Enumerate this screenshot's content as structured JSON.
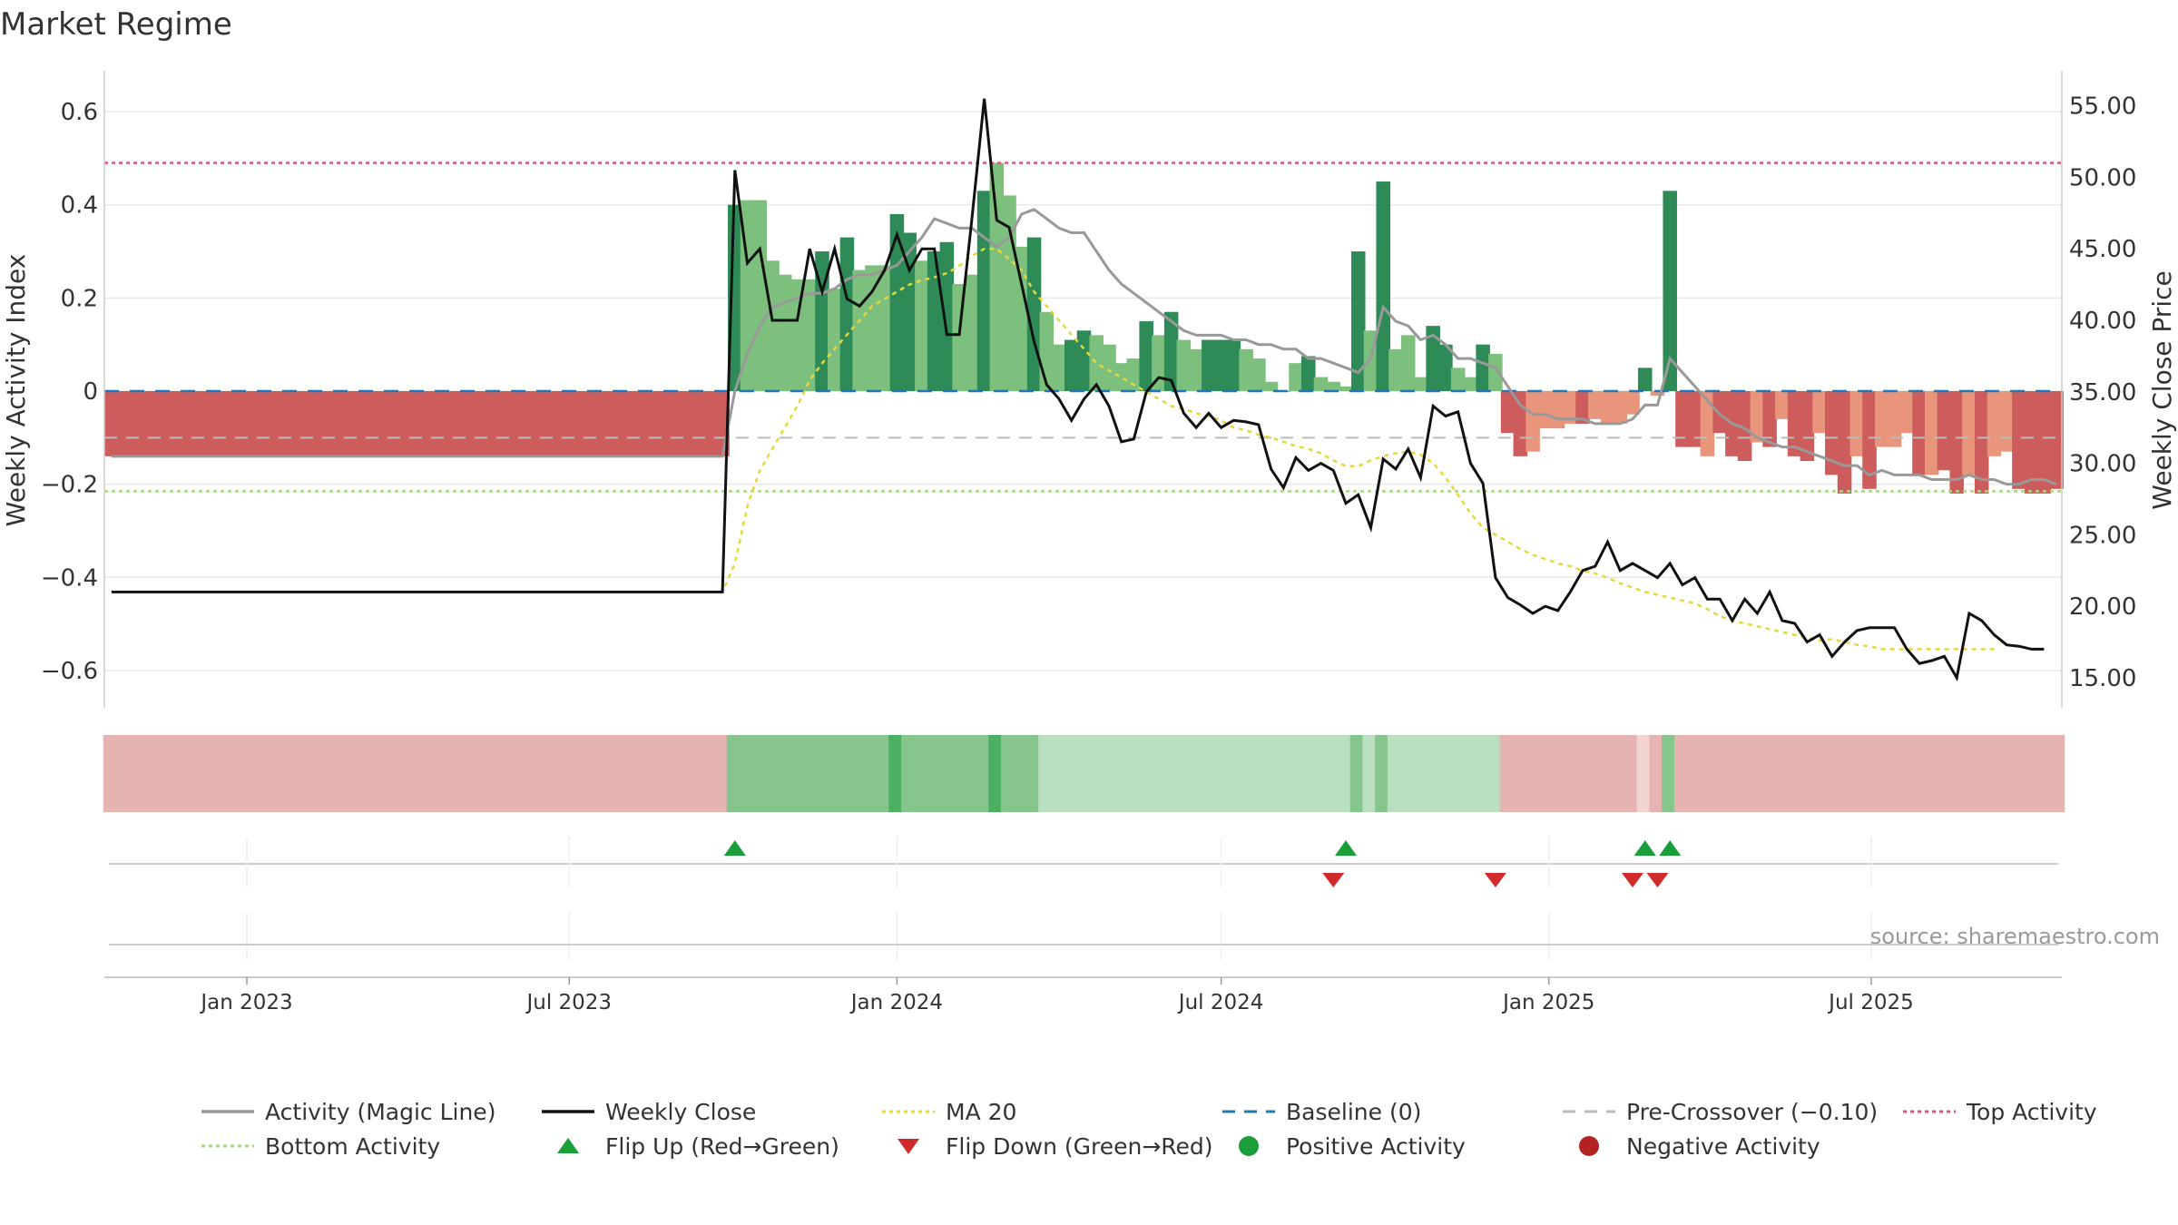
{
  "colors": {
    "axis_text": "#333333",
    "grid": "#e9e9e9",
    "strong_green": "#2e8b57",
    "light_green": "#7dbf7d",
    "strong_red": "#cd5c5c",
    "light_red": "#e8957b",
    "magic_line": "#999999",
    "weekly_close": "#111111",
    "ma20": "#e6d83a",
    "baseline": "#1f77b4",
    "pre_crossover": "#bbbbbb",
    "top_activity": "#d9577a",
    "bottom_activity": "#a8d878",
    "flip_up": "#1a9e3a",
    "flip_down": "#d12a2a",
    "positive_activity": "#1a9e3a",
    "negative_activity": "#b22222",
    "source_text": "#999999"
  },
  "chart_data": {
    "type": "bar",
    "title": "Market Regime",
    "source": "source: sharemaestro.com",
    "ylabel_left": "Weekly Activity Index",
    "ylabel_right": "Weekly Close Price",
    "yticks_left": [
      "0.6",
      "0.4",
      "0.2",
      "0",
      "−0.2",
      "−0.4",
      "−0.6"
    ],
    "yticks_left_values": [
      0.6,
      0.4,
      0.2,
      0,
      -0.2,
      -0.4,
      -0.6
    ],
    "yticks_right": [
      "55.00",
      "50.00",
      "45.00",
      "40.00",
      "35.00",
      "30.00",
      "25.00",
      "20.00",
      "15.00"
    ],
    "yticks_right_values": [
      55,
      50,
      45,
      40,
      35,
      30,
      25,
      20,
      15
    ],
    "ylim_left": [
      -0.68,
      0.68
    ],
    "ylim_right": [
      12.9,
      57.2
    ],
    "xticks": [
      "Jan 2023",
      "Jul 2023",
      "Jan 2024",
      "Jul 2024",
      "Jan 2025",
      "Jul 2025"
    ],
    "xticks_dates": [
      "2023-01-01",
      "2023-07-01",
      "2024-01-01",
      "2024-07-01",
      "2025-01-01",
      "2025-07-01"
    ],
    "x_range": [
      "2022-10-13",
      "2025-10-16"
    ],
    "weeks_start": "2022-10-17",
    "week_count": 157,
    "reference_lines": {
      "baseline": 0,
      "pre_crossover": -0.1,
      "top_activity": 0.49,
      "bottom_activity": -0.215
    },
    "activity_index": [
      -0.14,
      -0.14,
      -0.14,
      -0.14,
      -0.14,
      -0.14,
      -0.14,
      -0.14,
      -0.14,
      -0.14,
      -0.14,
      -0.14,
      -0.14,
      -0.14,
      -0.14,
      -0.14,
      -0.14,
      -0.14,
      -0.14,
      -0.14,
      -0.14,
      -0.14,
      -0.14,
      -0.14,
      -0.14,
      -0.14,
      -0.14,
      -0.14,
      -0.14,
      -0.14,
      -0.14,
      -0.14,
      -0.14,
      -0.14,
      -0.14,
      -0.14,
      -0.14,
      -0.14,
      -0.14,
      -0.14,
      -0.14,
      -0.14,
      -0.14,
      -0.14,
      -0.14,
      -0.14,
      -0.14,
      -0.14,
      -0.14,
      -0.14,
      0.4,
      0.41,
      0.41,
      0.28,
      0.25,
      0.24,
      0.24,
      0.3,
      0.22,
      0.33,
      0.26,
      0.27,
      0.27,
      0.38,
      0.34,
      0.28,
      0.3,
      0.32,
      0.23,
      0.25,
      0.43,
      0.49,
      0.42,
      0.31,
      0.33,
      0.17,
      0.1,
      0.11,
      0.13,
      0.12,
      0.1,
      0.06,
      0.07,
      0.15,
      0.12,
      0.17,
      0.11,
      0.09,
      0.11,
      0.11,
      0.11,
      0.09,
      0.07,
      0.02,
      0.0,
      0.06,
      0.075,
      0.03,
      0.02,
      0.01,
      0.3,
      0.13,
      0.45,
      0.09,
      0.12,
      0.03,
      0.14,
      0.1,
      0.05,
      0.03,
      0.1,
      0.08,
      -0.09,
      -0.14,
      -0.13,
      -0.08,
      -0.08,
      -0.07,
      -0.07,
      -0.06,
      -0.07,
      -0.07,
      -0.05,
      0.05,
      -0.01,
      0.43,
      -0.12,
      -0.12,
      -0.14,
      -0.09,
      -0.14,
      -0.15,
      -0.11,
      -0.12,
      -0.06,
      -0.14,
      -0.15,
      -0.09,
      -0.18,
      -0.22,
      -0.14,
      -0.21,
      -0.12,
      -0.12,
      -0.09,
      -0.18,
      -0.18,
      -0.17,
      -0.22,
      -0.18,
      -0.22,
      -0.14,
      -0.13,
      -0.21,
      -0.22,
      -0.22,
      -0.21
    ],
    "activity_strong": [
      1,
      1,
      1,
      1,
      1,
      1,
      1,
      1,
      1,
      1,
      1,
      1,
      1,
      1,
      1,
      1,
      1,
      1,
      1,
      1,
      1,
      1,
      1,
      1,
      1,
      1,
      1,
      1,
      1,
      1,
      1,
      1,
      1,
      1,
      1,
      1,
      1,
      1,
      1,
      1,
      1,
      1,
      1,
      1,
      1,
      1,
      1,
      1,
      1,
      1,
      1,
      0,
      0,
      0,
      0,
      0,
      0,
      1,
      0,
      1,
      0,
      0,
      0,
      1,
      1,
      0,
      1,
      1,
      0,
      0,
      1,
      0,
      0,
      0,
      1,
      0,
      0,
      1,
      1,
      0,
      0,
      0,
      0,
      1,
      0,
      1,
      0,
      0,
      1,
      1,
      1,
      0,
      0,
      0,
      0,
      0,
      1,
      0,
      0,
      0,
      1,
      0,
      1,
      0,
      0,
      0,
      1,
      1,
      0,
      0,
      1,
      0,
      1,
      1,
      0,
      0,
      0,
      0,
      1,
      0,
      0,
      0,
      0,
      1,
      0,
      1,
      1,
      1,
      0,
      1,
      1,
      1,
      0,
      1,
      0,
      1,
      1,
      0,
      1,
      1,
      0,
      1,
      0,
      0,
      0,
      1,
      0,
      1,
      1,
      0,
      1,
      0,
      0,
      1,
      1,
      1,
      1
    ],
    "magic_line": [
      -0.14,
      -0.14,
      -0.14,
      -0.14,
      -0.14,
      -0.14,
      -0.14,
      -0.14,
      -0.14,
      -0.14,
      -0.14,
      -0.14,
      -0.14,
      -0.14,
      -0.14,
      -0.14,
      -0.14,
      -0.14,
      -0.14,
      -0.14,
      -0.14,
      -0.14,
      -0.14,
      -0.14,
      -0.14,
      -0.14,
      -0.14,
      -0.14,
      -0.14,
      -0.14,
      -0.14,
      -0.14,
      -0.14,
      -0.14,
      -0.14,
      -0.14,
      -0.14,
      -0.14,
      -0.14,
      -0.14,
      -0.14,
      -0.14,
      -0.14,
      -0.14,
      -0.14,
      -0.14,
      -0.14,
      -0.14,
      -0.14,
      -0.14,
      0.0,
      0.08,
      0.14,
      0.18,
      0.19,
      0.2,
      0.21,
      0.21,
      0.22,
      0.24,
      0.25,
      0.25,
      0.26,
      0.27,
      0.3,
      0.33,
      0.37,
      0.36,
      0.35,
      0.35,
      0.33,
      0.31,
      0.33,
      0.38,
      0.39,
      0.37,
      0.35,
      0.34,
      0.34,
      0.3,
      0.26,
      0.23,
      0.21,
      0.19,
      0.17,
      0.15,
      0.13,
      0.12,
      0.12,
      0.12,
      0.11,
      0.11,
      0.1,
      0.1,
      0.09,
      0.09,
      0.07,
      0.07,
      0.06,
      0.05,
      0.04,
      0.07,
      0.18,
      0.15,
      0.14,
      0.11,
      0.12,
      0.1,
      0.07,
      0.07,
      0.06,
      0.05,
      0.01,
      -0.03,
      -0.05,
      -0.05,
      -0.06,
      -0.06,
      -0.06,
      -0.07,
      -0.07,
      -0.07,
      -0.06,
      -0.03,
      -0.03,
      0.07,
      0.04,
      0.01,
      -0.02,
      -0.05,
      -0.07,
      -0.08,
      -0.1,
      -0.11,
      -0.12,
      -0.12,
      -0.13,
      -0.14,
      -0.15,
      -0.16,
      -0.16,
      -0.18,
      -0.17,
      -0.18,
      -0.18,
      -0.18,
      -0.19,
      -0.19,
      -0.19,
      -0.18,
      -0.19,
      -0.19,
      -0.2,
      -0.2,
      -0.19,
      -0.19,
      -0.2
    ],
    "weekly_close": [
      21.0,
      21.0,
      21.0,
      21.0,
      21.0,
      21.0,
      21.0,
      21.0,
      21.0,
      21.0,
      21.0,
      21.0,
      21.0,
      21.0,
      21.0,
      21.0,
      21.0,
      21.0,
      21.0,
      21.0,
      21.0,
      21.0,
      21.0,
      21.0,
      21.0,
      21.0,
      21.0,
      21.0,
      21.0,
      21.0,
      21.0,
      21.0,
      21.0,
      21.0,
      21.0,
      21.0,
      21.0,
      21.0,
      21.0,
      21.0,
      21.0,
      21.0,
      21.0,
      21.0,
      21.0,
      21.0,
      21.0,
      21.0,
      21.0,
      21.0,
      50.5,
      44.0,
      45.0,
      40.0,
      40.0,
      40.0,
      45.0,
      42.0,
      45.0,
      41.5,
      41.0,
      42.0,
      43.5,
      46.0,
      43.5,
      45.0,
      45.0,
      39.0,
      39.0,
      47.0,
      55.5,
      47.0,
      46.5,
      42.5,
      38.5,
      35.5,
      34.5,
      33.0,
      34.5,
      35.5,
      34.0,
      31.5,
      31.7,
      35.0,
      36.0,
      35.8,
      33.5,
      32.5,
      33.5,
      32.5,
      33.0,
      32.9,
      32.7,
      29.6,
      28.3,
      30.4,
      29.5,
      30.0,
      29.5,
      27.2,
      27.8,
      25.5,
      30.3,
      29.6,
      31.0,
      29.0,
      34.0,
      33.3,
      33.6,
      30.0,
      28.6,
      22.0,
      20.6,
      20.1,
      19.5,
      20.0,
      19.7,
      21.0,
      22.5,
      22.8,
      24.5,
      22.5,
      23.0,
      22.5,
      22.0,
      23.0,
      21.5,
      22.0,
      20.5,
      20.5,
      19.0,
      20.5,
      19.5,
      21.0,
      19.0,
      18.8,
      17.5,
      18.0,
      16.5,
      17.5,
      18.3,
      18.5,
      18.5,
      18.5,
      17.0,
      16.0,
      16.2,
      16.5,
      15.0,
      19.5,
      19.0,
      18.0,
      17.3,
      17.2,
      17.0,
      17.0
    ],
    "ma20": [
      21.0,
      21.0,
      21.0,
      21.0,
      21.0,
      21.0,
      21.0,
      21.0,
      21.0,
      21.0,
      21.0,
      21.0,
      21.0,
      21.0,
      21.0,
      21.0,
      21.0,
      21.0,
      21.0,
      21.0,
      21.0,
      21.0,
      21.0,
      21.0,
      21.0,
      21.0,
      21.0,
      21.0,
      21.0,
      21.0,
      21.0,
      21.0,
      21.0,
      21.0,
      21.0,
      21.0,
      21.0,
      21.0,
      21.0,
      21.0,
      21.0,
      21.0,
      21.0,
      21.0,
      21.0,
      21.0,
      21.0,
      21.0,
      21.0,
      21.0,
      23.0,
      27.0,
      29.5,
      31.0,
      32.5,
      34.0,
      35.8,
      37.0,
      38.0,
      39.0,
      40.0,
      41.0,
      41.5,
      42.0,
      42.5,
      42.8,
      43.0,
      43.3,
      43.8,
      44.5,
      45.0,
      45.0,
      44.3,
      43.5,
      42.0,
      41.0,
      40.0,
      39.0,
      38.0,
      37.0,
      36.5,
      36.0,
      35.5,
      35.0,
      34.5,
      34.0,
      33.8,
      33.5,
      33.3,
      33.0,
      32.5,
      32.3,
      32.0,
      31.8,
      31.5,
      31.2,
      31.0,
      30.7,
      30.2,
      29.8,
      29.8,
      30.2,
      30.5,
      30.7,
      30.8,
      30.6,
      30.0,
      29.0,
      27.8,
      26.5,
      25.5,
      25.0,
      24.5,
      24.0,
      23.6,
      23.3,
      23.0,
      22.8,
      22.5,
      22.3,
      22.0,
      21.6,
      21.3,
      21.0,
      20.8,
      20.6,
      20.4,
      20.2,
      19.8,
      19.3,
      19.0,
      18.8,
      18.6,
      18.4,
      18.2,
      18.0,
      17.8,
      17.6,
      17.7,
      17.5,
      17.3,
      17.2,
      17.0,
      17.0,
      17.0,
      17.0,
      17.0,
      17.0,
      17.0,
      17.0,
      17.0,
      17.0
    ],
    "regime_strip_levels": [
      1,
      1,
      1,
      1,
      1,
      1,
      1,
      1,
      1,
      1,
      1,
      1,
      1,
      1,
      1,
      1,
      1,
      1,
      1,
      1,
      1,
      1,
      1,
      1,
      1,
      1,
      1,
      1,
      1,
      1,
      1,
      1,
      1,
      1,
      1,
      1,
      1,
      1,
      1,
      1,
      1,
      1,
      1,
      1,
      1,
      1,
      1,
      1,
      1,
      1,
      3,
      3,
      3,
      3,
      3,
      3,
      3,
      3,
      3,
      3,
      3,
      3,
      3,
      4,
      3,
      3,
      3,
      3,
      3,
      3,
      3,
      4,
      3,
      3,
      3,
      2,
      2,
      2,
      2,
      2,
      2,
      2,
      2,
      2,
      2,
      2,
      2,
      2,
      2,
      2,
      2,
      2,
      2,
      2,
      2,
      2,
      2,
      2,
      2,
      2,
      3,
      2,
      3,
      2,
      2,
      2,
      2,
      2,
      2,
      2,
      2,
      2,
      1,
      1,
      1,
      1,
      1,
      1,
      1,
      1,
      1,
      1,
      1,
      0,
      1,
      3,
      1,
      1,
      1,
      1,
      1,
      1,
      1,
      1,
      1,
      1,
      1,
      1,
      1,
      1,
      1,
      1,
      1,
      1,
      1,
      1,
      1,
      1,
      1,
      1,
      1,
      1,
      1,
      1,
      1,
      1,
      1
    ],
    "flip_up_weeks": [
      50,
      99,
      123,
      125
    ],
    "flip_down_weeks": [
      98,
      111,
      122,
      124
    ],
    "legend": [
      {
        "label": "Activity (Magic Line)",
        "kind": "line",
        "color_key": "magic_line"
      },
      {
        "label": "Weekly Close",
        "kind": "line",
        "color_key": "weekly_close"
      },
      {
        "label": "MA 20",
        "kind": "dotted",
        "color_key": "ma20"
      },
      {
        "label": "Baseline (0)",
        "kind": "dashed",
        "color_key": "baseline"
      },
      {
        "label": "Pre-Crossover (−0.10)",
        "kind": "dashed",
        "color_key": "pre_crossover"
      },
      {
        "label": "Top Activity",
        "kind": "dotted",
        "color_key": "top_activity"
      },
      {
        "label": "Bottom Activity",
        "kind": "dotted",
        "color_key": "bottom_activity"
      },
      {
        "label": "Flip Up (Red→Green)",
        "kind": "triangle-up",
        "color_key": "flip_up"
      },
      {
        "label": "Flip Down (Green→Red)",
        "kind": "triangle-down",
        "color_key": "flip_down"
      },
      {
        "label": "Positive Activity",
        "kind": "circle",
        "color_key": "positive_activity"
      },
      {
        "label": "Negative Activity",
        "kind": "circle",
        "color_key": "negative_activity"
      }
    ]
  }
}
